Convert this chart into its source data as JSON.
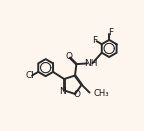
{
  "bg_color": "#fdf6ee",
  "bond_color": "#2a2a2a",
  "bond_width": 1.4,
  "font_size": 6.5,
  "label_color": "#1a1a1a",
  "fig_width": 1.44,
  "fig_height": 1.31,
  "dpi": 100,
  "xlim": [
    0,
    10
  ],
  "ylim": [
    0,
    9.1
  ]
}
